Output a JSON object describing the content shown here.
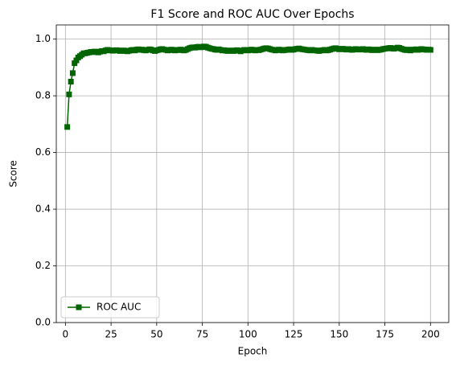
{
  "chart_data": {
    "type": "line",
    "title": "F1 Score and ROC AUC Over Epochs",
    "xlabel": "Epoch",
    "ylabel": "Score",
    "x": [
      1,
      2,
      3,
      4,
      5,
      6,
      7,
      8,
      9,
      10,
      11,
      12,
      13,
      14,
      15,
      16,
      17,
      18,
      19,
      20,
      21,
      22,
      23,
      24,
      25,
      26,
      27,
      28,
      29,
      30,
      31,
      32,
      33,
      34,
      35,
      36,
      37,
      38,
      39,
      40,
      41,
      42,
      43,
      44,
      45,
      46,
      47,
      48,
      49,
      50,
      51,
      52,
      53,
      54,
      55,
      56,
      57,
      58,
      59,
      60,
      61,
      62,
      63,
      64,
      65,
      66,
      67,
      68,
      69,
      70,
      71,
      72,
      73,
      74,
      75,
      76,
      77,
      78,
      79,
      80,
      81,
      82,
      83,
      84,
      85,
      86,
      87,
      88,
      89,
      90,
      91,
      92,
      93,
      94,
      95,
      96,
      97,
      98,
      99,
      100,
      101,
      102,
      103,
      104,
      105,
      106,
      107,
      108,
      109,
      110,
      111,
      112,
      113,
      114,
      115,
      116,
      117,
      118,
      119,
      120,
      121,
      122,
      123,
      124,
      125,
      126,
      127,
      128,
      129,
      130,
      131,
      132,
      133,
      134,
      135,
      136,
      137,
      138,
      139,
      140,
      141,
      142,
      143,
      144,
      145,
      146,
      147,
      148,
      149,
      150,
      151,
      152,
      153,
      154,
      155,
      156,
      157,
      158,
      159,
      160,
      161,
      162,
      163,
      164,
      165,
      166,
      167,
      168,
      169,
      170,
      171,
      172,
      173,
      174,
      175,
      176,
      177,
      178,
      179,
      180,
      181,
      182,
      183,
      184,
      185,
      186,
      187,
      188,
      189,
      190,
      191,
      192,
      193,
      194,
      195,
      196,
      197,
      198,
      199,
      200
    ],
    "series": [
      {
        "name": "ROC AUC",
        "color": "#006400",
        "values": [
          0.69,
          0.805,
          0.85,
          0.88,
          0.915,
          0.925,
          0.935,
          0.94,
          0.945,
          0.95,
          0.95,
          0.952,
          0.953,
          0.955,
          0.954,
          0.956,
          0.955,
          0.953,
          0.956,
          0.958,
          0.957,
          0.96,
          0.962,
          0.961,
          0.96,
          0.959,
          0.96,
          0.961,
          0.96,
          0.958,
          0.959,
          0.96,
          0.958,
          0.957,
          0.959,
          0.961,
          0.962,
          0.96,
          0.963,
          0.964,
          0.962,
          0.963,
          0.961,
          0.96,
          0.962,
          0.964,
          0.963,
          0.96,
          0.958,
          0.96,
          0.962,
          0.964,
          0.965,
          0.963,
          0.962,
          0.96,
          0.961,
          0.963,
          0.962,
          0.96,
          0.961,
          0.962,
          0.963,
          0.961,
          0.96,
          0.962,
          0.965,
          0.968,
          0.97,
          0.971,
          0.97,
          0.972,
          0.973,
          0.971,
          0.972,
          0.974,
          0.973,
          0.97,
          0.968,
          0.966,
          0.965,
          0.963,
          0.962,
          0.964,
          0.962,
          0.96,
          0.961,
          0.959,
          0.958,
          0.96,
          0.959,
          0.958,
          0.96,
          0.961,
          0.959,
          0.957,
          0.96,
          0.962,
          0.961,
          0.96,
          0.962,
          0.963,
          0.961,
          0.96,
          0.962,
          0.961,
          0.963,
          0.965,
          0.967,
          0.968,
          0.967,
          0.965,
          0.963,
          0.962,
          0.96,
          0.961,
          0.963,
          0.962,
          0.96,
          0.961,
          0.962,
          0.963,
          0.964,
          0.962,
          0.963,
          0.965,
          0.966,
          0.967,
          0.965,
          0.964,
          0.963,
          0.962,
          0.961,
          0.96,
          0.962,
          0.961,
          0.96,
          0.959,
          0.958,
          0.96,
          0.961,
          0.962,
          0.96,
          0.961,
          0.963,
          0.965,
          0.967,
          0.968,
          0.966,
          0.964,
          0.965,
          0.966,
          0.964,
          0.963,
          0.965,
          0.964,
          0.962,
          0.963,
          0.965,
          0.964,
          0.963,
          0.964,
          0.965,
          0.963,
          0.962,
          0.964,
          0.963,
          0.961,
          0.962,
          0.963,
          0.961,
          0.962,
          0.963,
          0.965,
          0.966,
          0.967,
          0.968,
          0.969,
          0.967,
          0.966,
          0.968,
          0.97,
          0.969,
          0.966,
          0.964,
          0.962,
          0.961,
          0.963,
          0.96,
          0.962,
          0.963,
          0.964,
          0.962,
          0.963,
          0.965,
          0.964,
          0.963,
          0.962,
          0.963,
          0.962
        ]
      }
    ],
    "xlim": [
      -5,
      210
    ],
    "xticks": [
      0,
      25,
      50,
      75,
      100,
      125,
      150,
      175,
      200
    ],
    "ylim": [
      0,
      1.05
    ],
    "yticks": [
      {
        "value": 0,
        "label": "0.0"
      },
      {
        "value": 0.2,
        "label": "0.2"
      },
      {
        "value": 0.4,
        "label": "0.4"
      },
      {
        "value": 0.6,
        "label": "0.6"
      },
      {
        "value": 0.8,
        "label": "0.8"
      },
      {
        "value": 1,
        "label": "1.0"
      }
    ],
    "grid": true,
    "legend": "lower left",
    "marker": "square"
  }
}
